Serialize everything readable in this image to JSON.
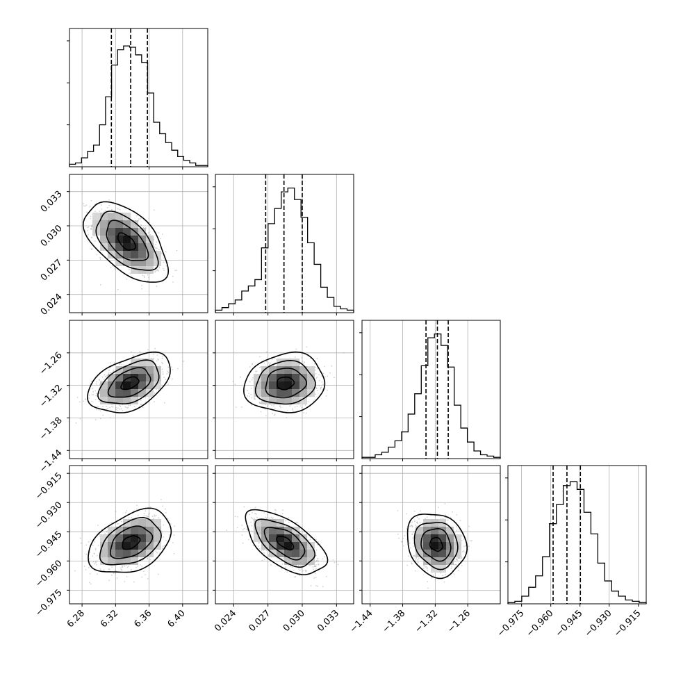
{
  "chart_data": {
    "type": "corner",
    "grid": true,
    "parameters": [
      {
        "index": 0,
        "range": [
          6.265,
          6.43
        ],
        "ticks": [
          6.28,
          6.32,
          6.36,
          6.4
        ],
        "tick_labels": [
          "6.28",
          "6.32",
          "6.36",
          "6.40"
        ],
        "quantiles": [
          6.315,
          6.338,
          6.358
        ],
        "histogram": [
          0.02,
          0.03,
          0.07,
          0.12,
          0.17,
          0.33,
          0.55,
          0.8,
          0.92,
          0.95,
          0.94,
          0.88,
          0.82,
          0.58,
          0.35,
          0.26,
          0.19,
          0.13,
          0.08,
          0.05,
          0.03,
          0.01,
          0.01
        ]
      },
      {
        "index": 1,
        "range": [
          0.0224,
          0.0345
        ],
        "ticks": [
          0.024,
          0.027,
          0.03,
          0.033
        ],
        "tick_labels": [
          "0.024",
          "0.027",
          "0.030",
          "0.033"
        ],
        "quantiles": [
          0.0268,
          0.0284,
          0.03
        ],
        "histogram": [
          0.02,
          0.04,
          0.07,
          0.1,
          0.17,
          0.21,
          0.26,
          0.51,
          0.7,
          0.82,
          0.95,
          0.98,
          0.89,
          0.75,
          0.55,
          0.38,
          0.2,
          0.12,
          0.05,
          0.03,
          0.02
        ]
      },
      {
        "index": 2,
        "range": [
          -1.455,
          -1.2
        ],
        "ticks": [
          -1.44,
          -1.38,
          -1.32,
          -1.26
        ],
        "tick_labels": [
          "−1.44",
          "−1.38",
          "−1.32",
          "−1.26"
        ],
        "quantiles": [
          -1.337,
          -1.316,
          -1.296
        ],
        "histogram": [
          0.01,
          0.01,
          0.03,
          0.05,
          0.09,
          0.14,
          0.21,
          0.35,
          0.51,
          0.73,
          0.95,
          0.98,
          0.89,
          0.72,
          0.42,
          0.24,
          0.13,
          0.06,
          0.03,
          0.02,
          0.01
        ]
      },
      {
        "index": 3,
        "range": [
          -0.982,
          -0.911
        ],
        "ticks": [
          -0.975,
          -0.96,
          -0.945,
          -0.93,
          -0.915
        ],
        "tick_labels": [
          "−0.975",
          "−0.960",
          "−0.945",
          "−0.930",
          "−0.915"
        ],
        "quantiles": [
          -0.9588,
          -0.9517,
          -0.9448
        ],
        "histogram": [
          0.01,
          0.02,
          0.06,
          0.13,
          0.22,
          0.37,
          0.63,
          0.78,
          0.93,
          0.96,
          0.9,
          0.72,
          0.55,
          0.32,
          0.18,
          0.1,
          0.06,
          0.03,
          0.02,
          0.01
        ]
      }
    ],
    "pairs": [
      {
        "x": 0,
        "y": 1,
        "center": [
          6.333,
          0.0286
        ],
        "sigma": [
          0.019,
          0.00135
        ],
        "rho": -0.55
      },
      {
        "x": 0,
        "y": 2,
        "center": [
          6.337,
          -1.316
        ],
        "sigma": [
          0.019,
          0.021
        ],
        "rho": 0.45
      },
      {
        "x": 1,
        "y": 2,
        "center": [
          0.0285,
          -1.316
        ],
        "sigma": [
          0.00135,
          0.021
        ],
        "rho": 0.1
      },
      {
        "x": 0,
        "y": 3,
        "center": [
          6.338,
          -0.9505
        ],
        "sigma": [
          0.019,
          0.0063
        ],
        "rho": 0.4
      },
      {
        "x": 1,
        "y": 3,
        "center": [
          0.0285,
          -0.9507
        ],
        "sigma": [
          0.00135,
          0.0063
        ],
        "rho": -0.6
      },
      {
        "x": 2,
        "y": 3,
        "center": [
          -1.318,
          -0.9515
        ],
        "sigma": [
          0.021,
          0.0063
        ],
        "rho": -0.15
      }
    ]
  }
}
